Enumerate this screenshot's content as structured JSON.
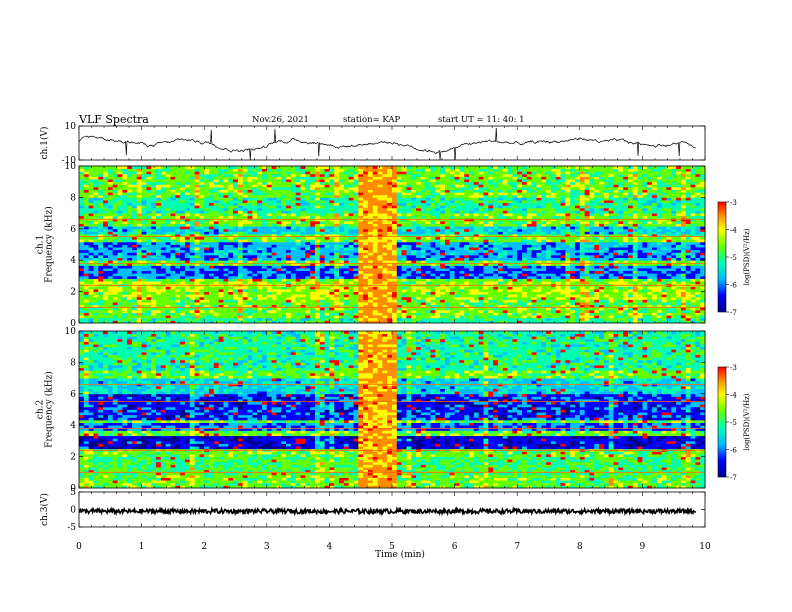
{
  "header": {
    "title": "VLF Spectra",
    "date": "Nov.26, 2021",
    "station": "station= KAP",
    "start": "start  UT =   11: 40: 1"
  },
  "chart_data": [
    {
      "type": "line",
      "ylabel": "ch.1(V)",
      "ylim": [
        -10,
        10
      ],
      "yticks": [
        "10",
        "-10"
      ],
      "xlim": [
        0,
        10
      ]
    },
    {
      "type": "heatmap",
      "ylabel": "ch.1\nFrequency (kHz)",
      "ylim": [
        0,
        10
      ],
      "yticks": [
        "0",
        "2",
        "4",
        "6",
        "8",
        "10"
      ],
      "xlim": [
        0,
        10
      ],
      "colorbar": {
        "label": "log(PSD)(V²/Hz)",
        "range": [
          -7,
          -3
        ],
        "ticks": [
          "-3",
          "-4",
          "-5",
          "-6",
          "-7"
        ]
      }
    },
    {
      "type": "heatmap",
      "ylabel": "ch.2\nFrequency (kHz)",
      "ylim": [
        0,
        10
      ],
      "yticks": [
        "0",
        "2",
        "4",
        "6",
        "8",
        "10"
      ],
      "xlim": [
        0,
        10
      ],
      "colorbar": {
        "label": "log(PSD)(V²/Hz)",
        "range": [
          -7,
          -3
        ],
        "ticks": [
          "-3",
          "-4",
          "-5",
          "-6",
          "-7"
        ]
      }
    },
    {
      "type": "line",
      "ylabel": "ch.3(V)",
      "ylim": [
        -5,
        5
      ],
      "yticks": [
        "5",
        "0",
        "-5"
      ],
      "xlim": [
        0,
        10
      ]
    }
  ],
  "xaxis": {
    "label": "Time  (min)",
    "ticks": [
      "0",
      "1",
      "2",
      "3",
      "4",
      "5",
      "6",
      "7",
      "8",
      "9",
      "10"
    ]
  },
  "colors": {
    "colormap": [
      "#00008b",
      "#0000ff",
      "#00bfff",
      "#00ffb0",
      "#66ff00",
      "#ffff00",
      "#ff8c00",
      "#ff0000"
    ]
  }
}
